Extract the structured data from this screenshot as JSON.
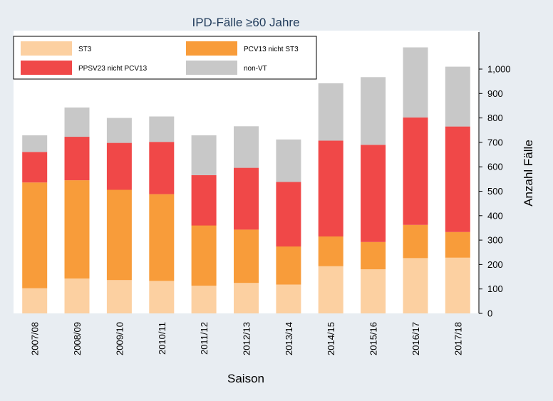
{
  "chart_data": {
    "type": "bar",
    "stacked": true,
    "title": "IPD-Fälle ≥60 Jahre",
    "xlabel": "Saison",
    "ylabel": "Anzahl Fälle",
    "ylim": [
      0,
      1150
    ],
    "yticks": [
      0,
      100,
      200,
      300,
      400,
      500,
      600,
      700,
      800,
      900,
      1000
    ],
    "ytick_labels": [
      "0",
      "100",
      "200",
      "300",
      "400",
      "500",
      "600",
      "700",
      "800",
      "900",
      "1,000"
    ],
    "y_axis_side": "right",
    "legend_position": "top-left",
    "grid": false,
    "categories": [
      "2007/08",
      "2008/09",
      "2009/10",
      "2010/11",
      "2011/12",
      "2012/13",
      "2013/14",
      "2014/15",
      "2015/16",
      "2016/17",
      "2017/18"
    ],
    "series": [
      {
        "name": "ST3",
        "color": "#fcd0a1",
        "values": [
          103,
          143,
          136,
          133,
          113,
          125,
          118,
          193,
          180,
          226,
          228
        ]
      },
      {
        "name": "PCV13 nicht ST3",
        "color": "#f89c3a",
        "values": [
          433,
          402,
          370,
          355,
          247,
          218,
          156,
          122,
          112,
          136,
          105
        ]
      },
      {
        "name": "PPSV23 nicht PCV13",
        "color": "#f04848",
        "values": [
          125,
          178,
          192,
          214,
          206,
          253,
          264,
          392,
          398,
          440,
          432
        ]
      },
      {
        "name": "non-VT",
        "color": "#c8c8c8",
        "values": [
          68,
          120,
          102,
          104,
          163,
          170,
          174,
          235,
          277,
          287,
          245
        ]
      }
    ]
  }
}
